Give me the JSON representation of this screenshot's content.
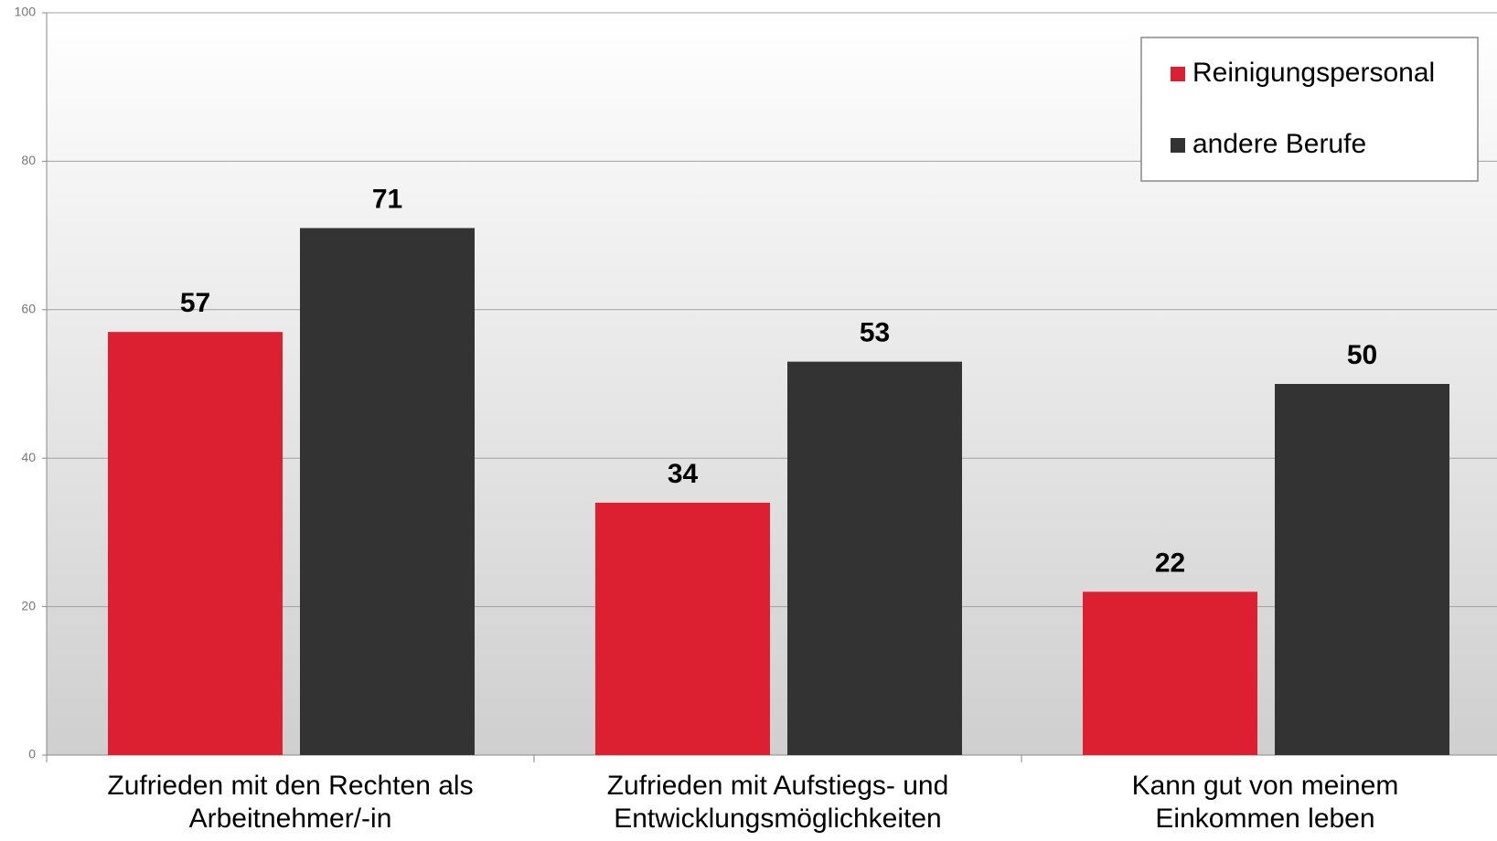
{
  "chart_data": {
    "type": "bar",
    "categories": [
      "Zufrieden mit den Rechten als Arbeitnehmer/-in",
      "Zufrieden mit Aufstiegs- und Entwicklungsmöglichkeiten",
      "Kann gut von meinem Einkommen leben"
    ],
    "series": [
      {
        "name": "Reinigungspersonal",
        "color": "#dc2032",
        "values": [
          57,
          34,
          22
        ]
      },
      {
        "name": "andere Berufe",
        "color": "#333333",
        "values": [
          71,
          53,
          50
        ]
      }
    ],
    "ylim": [
      0,
      100
    ],
    "yticks": [
      0,
      20,
      40,
      60,
      80,
      100
    ],
    "grid": true,
    "legend": "top-right"
  }
}
